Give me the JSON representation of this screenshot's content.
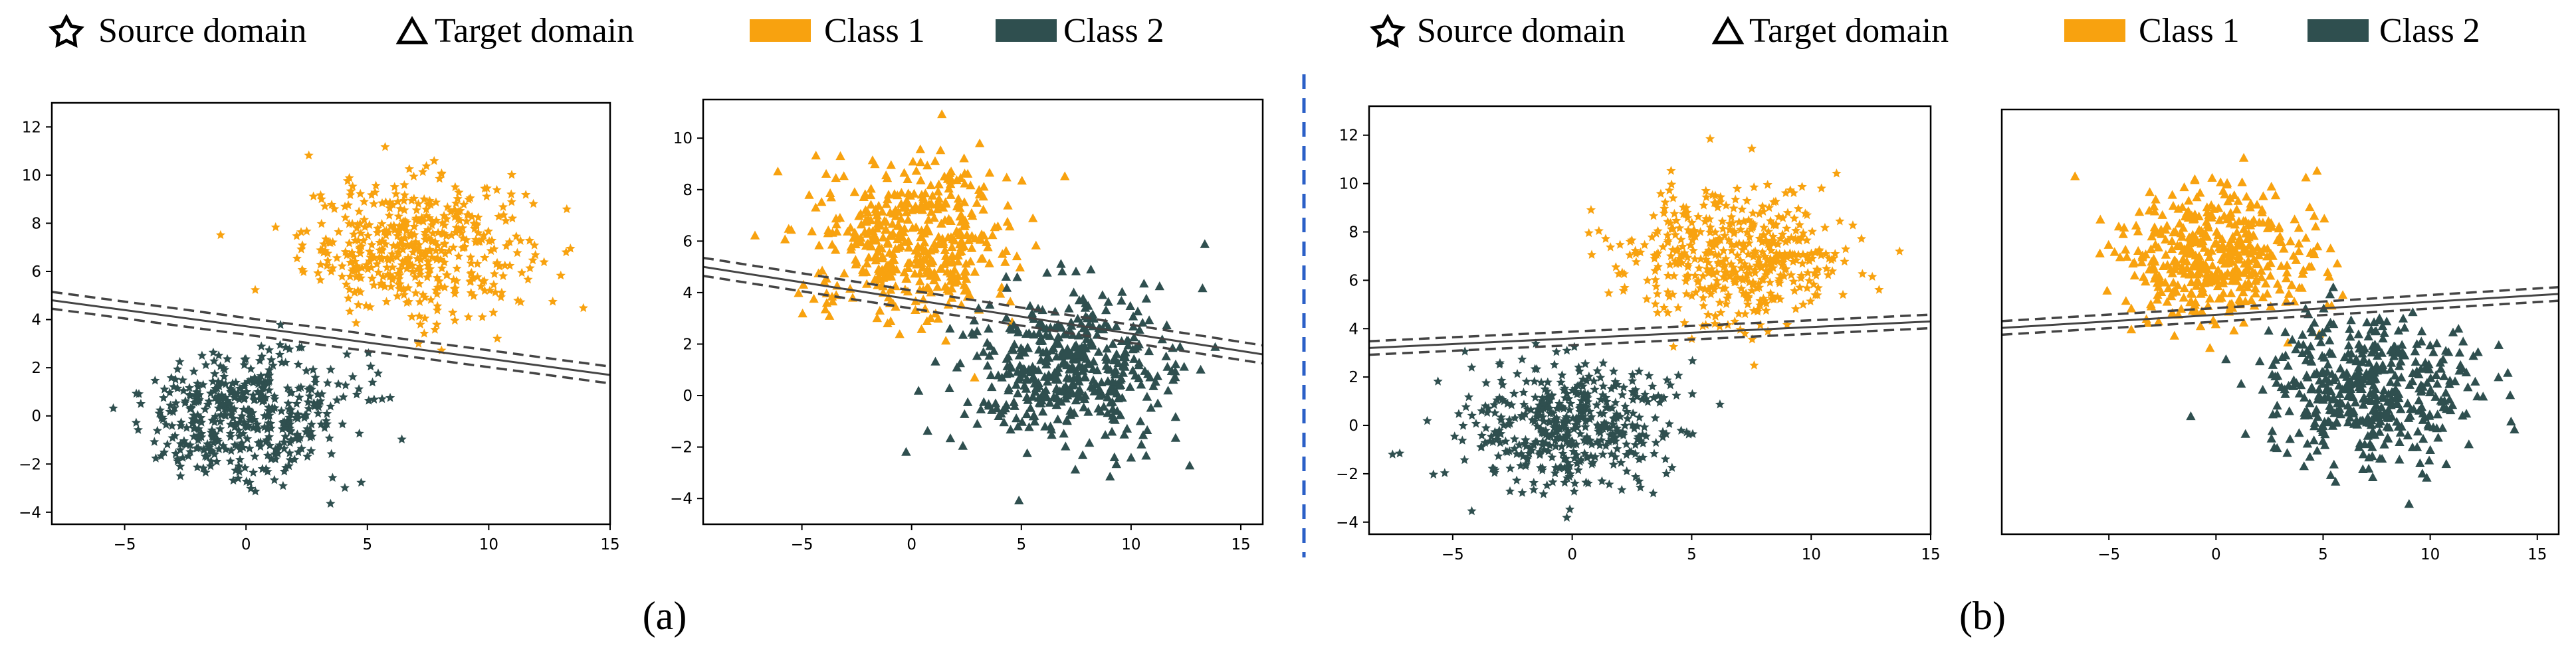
{
  "colors": {
    "class1": "#f8a20f",
    "class2": "#2f4f4f",
    "divider": "#2b5fc7",
    "boundary": "#444444"
  },
  "legend": {
    "source_label": "Source domain",
    "target_label": "Target domain",
    "class1_label": "Class 1",
    "class2_label": "Class 2",
    "source_icon": "star-outline-icon",
    "target_icon": "triangle-outline-icon"
  },
  "captions": {
    "a": "(a)",
    "b": "(b)"
  },
  "chart_data": [
    {
      "type": "scatter",
      "id": "a-source",
      "title": "",
      "xlabel": "",
      "ylabel": "",
      "xlim": [
        -8,
        15
      ],
      "ylim": [
        -4.5,
        13
      ],
      "grid": false,
      "xticks": [
        -5,
        0,
        5,
        10,
        15
      ],
      "yticks": [
        -4,
        -2,
        0,
        2,
        4,
        6,
        8,
        10,
        12
      ],
      "xtick_labels": [
        "−5",
        "0",
        "5",
        "10",
        "15"
      ],
      "ytick_labels": [
        "−4",
        "−2",
        "0",
        "2",
        "4",
        "6",
        "8",
        "10",
        "12"
      ],
      "marker": "star",
      "series": [
        {
          "name": "Class 1",
          "domain": "Source",
          "center": [
            7,
            7
          ],
          "spread": [
            2.3,
            1.4
          ],
          "count": 460
        },
        {
          "name": "Class 2",
          "domain": "Source",
          "center": [
            0,
            0
          ],
          "spread": [
            2.2,
            1.3
          ],
          "count": 460
        }
      ],
      "boundary": {
        "x": [
          -8,
          15
        ],
        "y": [
          4.8,
          1.7
        ],
        "margin": 0.35
      }
    },
    {
      "type": "scatter",
      "id": "a-target",
      "title": "",
      "xlabel": "",
      "ylabel": "",
      "xlim": [
        -9.5,
        16
      ],
      "ylim": [
        -5,
        11.5
      ],
      "grid": false,
      "xticks": [
        -5,
        0,
        5,
        10,
        15
      ],
      "yticks": [
        -4,
        -2,
        0,
        2,
        4,
        6,
        8,
        10
      ],
      "xtick_labels": [
        "−5",
        "0",
        "5",
        "10",
        "15"
      ],
      "ytick_labels": [
        "−4",
        "−2",
        "0",
        "2",
        "4",
        "6",
        "8",
        "10"
      ],
      "marker": "triangle",
      "series": [
        {
          "name": "Class 1",
          "domain": "Target",
          "center": [
            0,
            6
          ],
          "spread": [
            2.3,
            1.5
          ],
          "count": 460
        },
        {
          "name": "Class 2",
          "domain": "Target",
          "center": [
            7,
            1
          ],
          "spread": [
            2.4,
            1.5
          ],
          "count": 460
        }
      ],
      "boundary": {
        "x": [
          -9.5,
          16
        ],
        "y": [
          5.0,
          1.6
        ],
        "margin": 0.35
      }
    },
    {
      "type": "scatter",
      "id": "b-source",
      "title": "",
      "xlabel": "",
      "ylabel": "",
      "xlim": [
        -8.5,
        15
      ],
      "ylim": [
        -4.5,
        13.2
      ],
      "grid": false,
      "xticks": [
        -5,
        0,
        5,
        10,
        15
      ],
      "yticks": [
        -4,
        -2,
        0,
        2,
        4,
        6,
        8,
        10,
        12
      ],
      "xtick_labels": [
        "−5",
        "0",
        "5",
        "10",
        "15"
      ],
      "ytick_labels": [
        "−4",
        "−2",
        "0",
        "2",
        "4",
        "6",
        "8",
        "10",
        "12"
      ],
      "marker": "star",
      "series": [
        {
          "name": "Class 1",
          "domain": "Source",
          "center": [
            7,
            7
          ],
          "spread": [
            2.3,
            1.4
          ],
          "count": 460
        },
        {
          "name": "Class 2",
          "domain": "Source",
          "center": [
            0,
            0
          ],
          "spread": [
            2.2,
            1.3
          ],
          "count": 460
        }
      ],
      "boundary": {
        "x": [
          -8.5,
          15
        ],
        "y": [
          3.2,
          4.3
        ],
        "margin": 0.28
      }
    },
    {
      "type": "scatter",
      "id": "b-target",
      "title": "",
      "xlabel": "",
      "ylabel": "",
      "xlim": [
        -10,
        16
      ],
      "ylim": [
        -4.5,
        13
      ],
      "grid": false,
      "xticks": [
        -5,
        0,
        5,
        10,
        15
      ],
      "yticks": [],
      "xtick_labels": [
        "−5",
        "0",
        "5",
        "10",
        "15"
      ],
      "ytick_labels": [],
      "marker": "triangle",
      "series": [
        {
          "name": "Class 1",
          "domain": "Target",
          "center": [
            0,
            7
          ],
          "spread": [
            2.3,
            1.5
          ],
          "count": 460
        },
        {
          "name": "Class 2",
          "domain": "Target",
          "center": [
            7,
            1.5
          ],
          "spread": [
            2.4,
            1.5
          ],
          "count": 460
        }
      ],
      "boundary": {
        "x": [
          -10,
          16
        ],
        "y": [
          4.0,
          5.4
        ],
        "margin": 0.28
      }
    }
  ]
}
